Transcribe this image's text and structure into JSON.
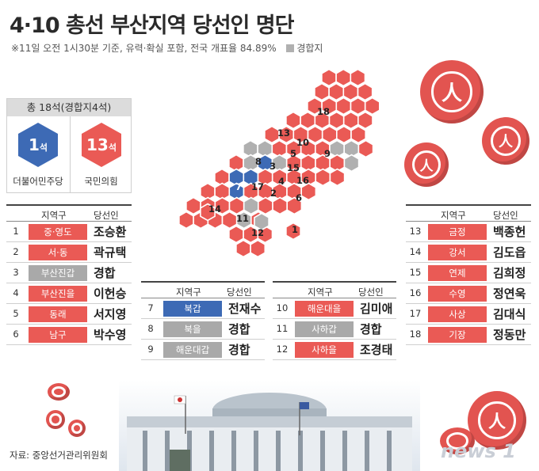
{
  "title": "4·10 총선 부산지역 당선인 명단",
  "note": "※11일 오전 1시30분 기준, 유력·확실 포함, 전국 개표율 84.89%",
  "legend_label": "경합지",
  "summary": {
    "header": "총 18석(경합지4석)",
    "parties": [
      {
        "name": "더불어민주당",
        "seats": "1",
        "unit": "석",
        "color": "#3d6ab5"
      },
      {
        "name": "국민의힘",
        "seats": "13",
        "unit": "석",
        "color": "#ea5a55"
      }
    ]
  },
  "table_headers": {
    "district": "지역구",
    "winner": "당선인"
  },
  "colors": {
    "red": "#ea5a55",
    "blue": "#3d6ab5",
    "gray": "#b0b0b0"
  },
  "tables": [
    [
      {
        "num": "1",
        "district": "중·영도",
        "winner": "조승환",
        "party": "red"
      },
      {
        "num": "2",
        "district": "서·동",
        "winner": "곽규택",
        "party": "red"
      },
      {
        "num": "3",
        "district": "부산진갑",
        "winner": "경합",
        "party": "gray"
      },
      {
        "num": "4",
        "district": "부산진을",
        "winner": "이헌승",
        "party": "red"
      },
      {
        "num": "5",
        "district": "동래",
        "winner": "서지영",
        "party": "red"
      },
      {
        "num": "6",
        "district": "남구",
        "winner": "박수영",
        "party": "red"
      }
    ],
    [
      {
        "num": "7",
        "district": "북갑",
        "winner": "전재수",
        "party": "blue"
      },
      {
        "num": "8",
        "district": "북을",
        "winner": "경합",
        "party": "gray"
      },
      {
        "num": "9",
        "district": "해운대갑",
        "winner": "경합",
        "party": "gray"
      }
    ],
    [
      {
        "num": "10",
        "district": "해운대을",
        "winner": "김미애",
        "party": "red"
      },
      {
        "num": "11",
        "district": "사하갑",
        "winner": "경합",
        "party": "gray"
      },
      {
        "num": "12",
        "district": "사하을",
        "winner": "조경태",
        "party": "red"
      }
    ],
    [
      {
        "num": "13",
        "district": "금정",
        "winner": "백종헌",
        "party": "red"
      },
      {
        "num": "14",
        "district": "강서",
        "winner": "김도읍",
        "party": "red"
      },
      {
        "num": "15",
        "district": "연제",
        "winner": "김희정",
        "party": "red"
      },
      {
        "num": "16",
        "district": "수영",
        "winner": "정연욱",
        "party": "red"
      },
      {
        "num": "17",
        "district": "사상",
        "winner": "김대식",
        "party": "red"
      },
      {
        "num": "18",
        "district": "기장",
        "winner": "정동만",
        "party": "red"
      }
    ]
  ],
  "map": {
    "district_labels": [
      {
        "label": "18"
      },
      {
        "label": "13"
      },
      {
        "label": "10"
      },
      {
        "label": "9"
      },
      {
        "label": "5"
      },
      {
        "label": "8"
      },
      {
        "label": "3"
      },
      {
        "label": "15"
      },
      {
        "label": "7"
      },
      {
        "label": "17"
      },
      {
        "label": "4"
      },
      {
        "label": "16"
      },
      {
        "label": "2"
      },
      {
        "label": "6"
      },
      {
        "label": "14"
      },
      {
        "label": "11"
      },
      {
        "label": "12"
      },
      {
        "label": "1"
      }
    ]
  },
  "source": "자료: 중앙선거관리위원회",
  "watermark": "news 1"
}
